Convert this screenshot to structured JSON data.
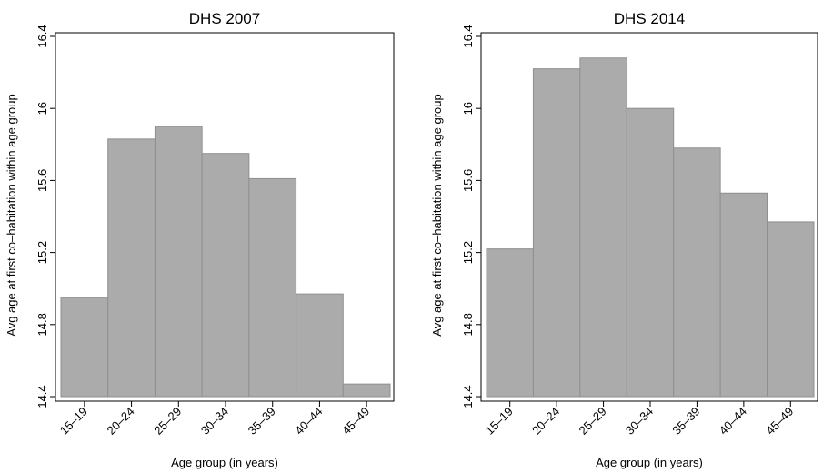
{
  "chart_data": [
    {
      "type": "bar",
      "title": "DHS 2007",
      "xlabel": "Age group (in years)",
      "ylabel": "Avg age at first co–habitation within age group",
      "categories": [
        "15–19",
        "20–24",
        "25–29",
        "30–34",
        "35–39",
        "40–44",
        "45–49"
      ],
      "values": [
        14.95,
        15.83,
        15.9,
        15.75,
        15.61,
        14.97,
        14.47
      ],
      "yticks": [
        14.4,
        14.8,
        15.2,
        15.6,
        16,
        16.4
      ],
      "ytick_labels": [
        "14.4",
        "14.8",
        "15.2",
        "15.6",
        "16",
        "16.4"
      ],
      "ylim": [
        14.4,
        16.4
      ],
      "grid": false,
      "bar_color": "#ababab"
    },
    {
      "type": "bar",
      "title": "DHS 2014",
      "xlabel": "Age group (in years)",
      "ylabel": "Avg age at first co–habitation within age group",
      "categories": [
        "15–19",
        "20–24",
        "25–29",
        "30–34",
        "35–39",
        "40–44",
        "45–49"
      ],
      "values": [
        15.22,
        16.22,
        16.28,
        16.0,
        15.78,
        15.53,
        15.37
      ],
      "yticks": [
        14.4,
        14.8,
        15.2,
        15.6,
        16,
        16.4
      ],
      "ytick_labels": [
        "14.4",
        "14.8",
        "15.2",
        "15.6",
        "16",
        "16.4"
      ],
      "ylim": [
        14.4,
        16.4
      ],
      "grid": false,
      "bar_color": "#ababab"
    }
  ]
}
